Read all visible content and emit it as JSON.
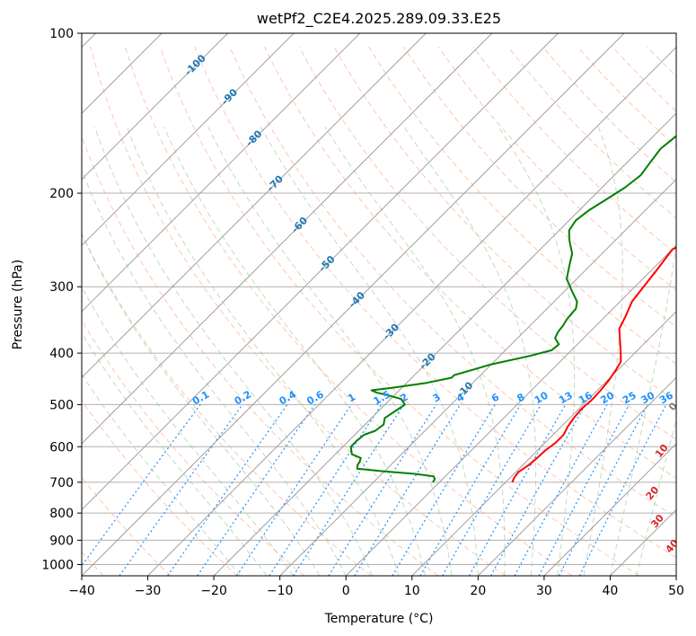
{
  "chart_data": {
    "type": "line",
    "title": "wetPf2_C2E4.2025.289.09.33.E25",
    "xlabel": "Temperature (°C)",
    "ylabel": "Pressure (hPa)",
    "xlim": [
      -40,
      50
    ],
    "ylim": [
      1050,
      100
    ],
    "y_scale": "log",
    "grid": true,
    "x_ticks": [
      "−40",
      "−30",
      "−20",
      "−10",
      "0",
      "10",
      "20",
      "30",
      "40",
      "50"
    ],
    "x_tick_values": [
      -40,
      -30,
      -20,
      -10,
      0,
      10,
      20,
      30,
      40,
      50
    ],
    "y_ticks": [
      "100",
      "200",
      "300",
      "400",
      "500",
      "600",
      "700",
      "800",
      "900",
      "1000"
    ],
    "y_tick_values": [
      100,
      200,
      300,
      400,
      500,
      600,
      700,
      800,
      900,
      1000
    ],
    "colors": {
      "temperature": "#ff0000",
      "dewpoint": "#008000",
      "isotherm": "#999999",
      "dry_adiabat": "#ffa07a",
      "moist_adiabat": "#8fbc8f",
      "mixing_ratio": "#1e90ff",
      "isotherm_label": "#1f77b4",
      "dry_label": "#d62728",
      "zero_label": "#808080"
    },
    "series": [
      {
        "key": "temperature",
        "points": [
          [
            11.0,
            700
          ],
          [
            10.6,
            685
          ],
          [
            10.4,
            670
          ],
          [
            10.9,
            650
          ],
          [
            11.1,
            630
          ],
          [
            11.2,
            610
          ],
          [
            11.6,
            590
          ],
          [
            11.6,
            570
          ],
          [
            11.0,
            550
          ],
          [
            10.6,
            530
          ],
          [
            10.4,
            510
          ],
          [
            10.6,
            490
          ],
          [
            10.5,
            470
          ],
          [
            10.2,
            450
          ],
          [
            9.7,
            430
          ],
          [
            9.2,
            415
          ],
          [
            7.9,
            400
          ],
          [
            6.0,
            380
          ],
          [
            4.0,
            360
          ],
          [
            3.0,
            340
          ],
          [
            1.8,
            320
          ],
          [
            1.3,
            300
          ],
          [
            0.8,
            280
          ],
          [
            0.0,
            255
          ],
          [
            3.0,
            240
          ],
          [
            6.2,
            225
          ],
          [
            8.2,
            210
          ],
          [
            9.7,
            195
          ],
          [
            11.3,
            180
          ],
          [
            13.0,
            165
          ],
          [
            14.6,
            150
          ],
          [
            15.7,
            140
          ],
          [
            16.0,
            133
          ],
          [
            15.6,
            127
          ],
          [
            16.2,
            120
          ],
          [
            17.5,
            113
          ],
          [
            18.3,
            106
          ],
          [
            19.0,
            100
          ]
        ]
      },
      {
        "key": "dewpoint",
        "points": [
          [
            -1.0,
            700
          ],
          [
            -1.2,
            690
          ],
          [
            -1.8,
            682
          ],
          [
            -5.0,
            675
          ],
          [
            -10.0,
            668
          ],
          [
            -14.5,
            660
          ],
          [
            -15.0,
            650
          ],
          [
            -15.2,
            640
          ],
          [
            -15.6,
            630
          ],
          [
            -17.5,
            620
          ],
          [
            -18.8,
            600
          ],
          [
            -18.8,
            585
          ],
          [
            -18.6,
            570
          ],
          [
            -17.5,
            560
          ],
          [
            -17.2,
            545
          ],
          [
            -18.0,
            530
          ],
          [
            -17.5,
            515
          ],
          [
            -17.0,
            500
          ],
          [
            -18.4,
            488
          ],
          [
            -21.0,
            480
          ],
          [
            -23.0,
            475
          ],
          [
            -24.2,
            470
          ],
          [
            -21.5,
            465
          ],
          [
            -17.0,
            455
          ],
          [
            -14.0,
            445
          ],
          [
            -14.0,
            440
          ],
          [
            -12.0,
            430
          ],
          [
            -10.0,
            420
          ],
          [
            -5.5,
            405
          ],
          [
            -3.0,
            395
          ],
          [
            -2.8,
            385
          ],
          [
            -4.3,
            375
          ],
          [
            -4.8,
            365
          ],
          [
            -5.0,
            355
          ],
          [
            -5.4,
            345
          ],
          [
            -5.6,
            330
          ],
          [
            -6.5,
            320
          ],
          [
            -9.0,
            305
          ],
          [
            -11.5,
            290
          ],
          [
            -12.5,
            280
          ],
          [
            -13.5,
            270
          ],
          [
            -14.5,
            260
          ],
          [
            -17.0,
            245
          ],
          [
            -18.5,
            235
          ],
          [
            -19.0,
            225
          ],
          [
            -18.5,
            215
          ],
          [
            -17.5,
            205
          ],
          [
            -16.5,
            195
          ],
          [
            -16.0,
            185
          ],
          [
            -16.5,
            175
          ],
          [
            -17.0,
            165
          ],
          [
            -16.5,
            155
          ],
          [
            -15.0,
            147
          ],
          [
            -12.5,
            140
          ],
          [
            -10.0,
            133
          ],
          [
            -8.0,
            125
          ],
          [
            -6.5,
            118
          ],
          [
            -5.0,
            110
          ],
          [
            -3.0,
            104
          ],
          [
            -1.5,
            100
          ]
        ]
      }
    ],
    "isotherm_labels": [
      {
        "text": "-100",
        "t": -100,
        "p": 115
      },
      {
        "text": "-90",
        "t": -90,
        "p": 132
      },
      {
        "text": "-80",
        "t": -80,
        "p": 158
      },
      {
        "text": "-70",
        "t": -70,
        "p": 192
      },
      {
        "text": "-60",
        "t": -60,
        "p": 230
      },
      {
        "text": "-50",
        "t": -50,
        "p": 272
      },
      {
        "text": "-40",
        "t": -40,
        "p": 318
      },
      {
        "text": "-30",
        "t": -30,
        "p": 365
      },
      {
        "text": "-20",
        "t": -20,
        "p": 415
      },
      {
        "text": "-10",
        "t": -10,
        "p": 470
      }
    ],
    "mixing_ratio_labels": [
      {
        "text": "0.1",
        "w": 0.1
      },
      {
        "text": "0.2",
        "w": 0.2
      },
      {
        "text": "0.4",
        "w": 0.4
      },
      {
        "text": "0.6",
        "w": 0.6
      },
      {
        "text": "1",
        "w": 1
      },
      {
        "text": "1.5",
        "w": 1.5
      },
      {
        "text": "2",
        "w": 2
      },
      {
        "text": "3",
        "w": 3
      },
      {
        "text": "4",
        "w": 4
      },
      {
        "text": "6",
        "w": 6
      },
      {
        "text": "8",
        "w": 8
      },
      {
        "text": "10",
        "w": 10
      },
      {
        "text": "13",
        "w": 13
      },
      {
        "text": "16",
        "w": 16
      },
      {
        "text": "20",
        "w": 20
      },
      {
        "text": "25",
        "w": 25
      },
      {
        "text": "30",
        "w": 30
      },
      {
        "text": "36",
        "w": 36
      }
    ],
    "dry_adiabat_labels": [
      {
        "text": "0",
        "t": 24,
        "p": 505
      },
      {
        "text": "10",
        "t": 29,
        "p": 612
      },
      {
        "text": "20",
        "t": 34,
        "p": 735
      },
      {
        "text": "30",
        "t": 39,
        "p": 830
      },
      {
        "text": "40",
        "t": 45,
        "p": 925
      }
    ]
  }
}
